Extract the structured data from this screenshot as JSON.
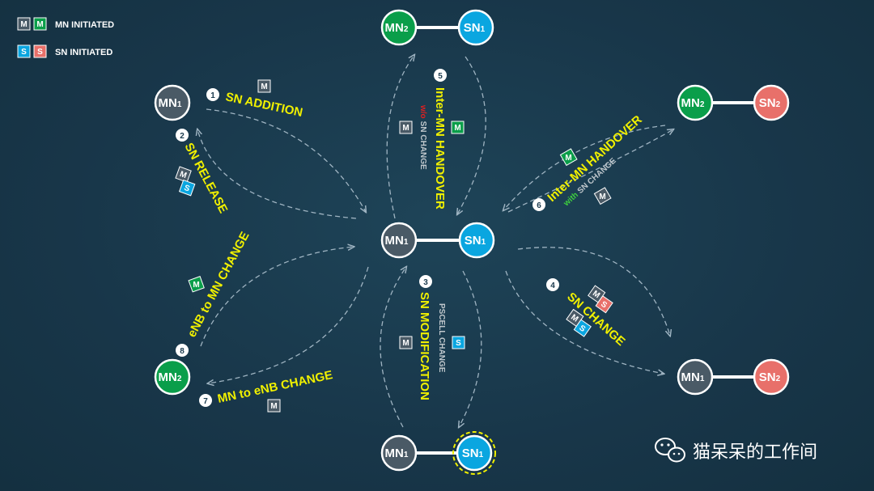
{
  "colors": {
    "background": "#183649",
    "mn_gray": "#4a5a66",
    "mn_green": "#0a9e4a",
    "sn_blue": "#0aa6e0",
    "sn_red": "#e8706a",
    "yellow": "#f0f000",
    "arrow": "#9fb4c2"
  },
  "legend": {
    "mn_initiated": "MN INITIATED",
    "sn_initiated": "SN INITIATED",
    "m": "M",
    "s": "S"
  },
  "nodes": {
    "mn": "MN",
    "sn": "SN",
    "sub1": "1",
    "sub2": "2"
  },
  "procedures": {
    "p1": {
      "num": "1",
      "label": "SN ADDITION"
    },
    "p2": {
      "num": "2",
      "label": "SN RELEASE"
    },
    "p3": {
      "num": "3",
      "label": "SN MODIFICATION",
      "sub": "PSCELL CHANGE"
    },
    "p4": {
      "num": "4",
      "label": "SN CHANGE"
    },
    "p5": {
      "num": "5",
      "label": "Inter-MN HANDOVER",
      "sub_prefix": "w/o",
      "sub": "SN CHANGE"
    },
    "p6": {
      "num": "6",
      "label": "Inter-MN HANDOVER",
      "sub_prefix": "with",
      "sub": "SN CHANGE"
    },
    "p7": {
      "num": "7",
      "label": "MN to eNB CHANGE"
    },
    "p8": {
      "num": "8",
      "label": "eNB to MN CHANGE"
    }
  },
  "watermark": "猫呆呆的工作间"
}
